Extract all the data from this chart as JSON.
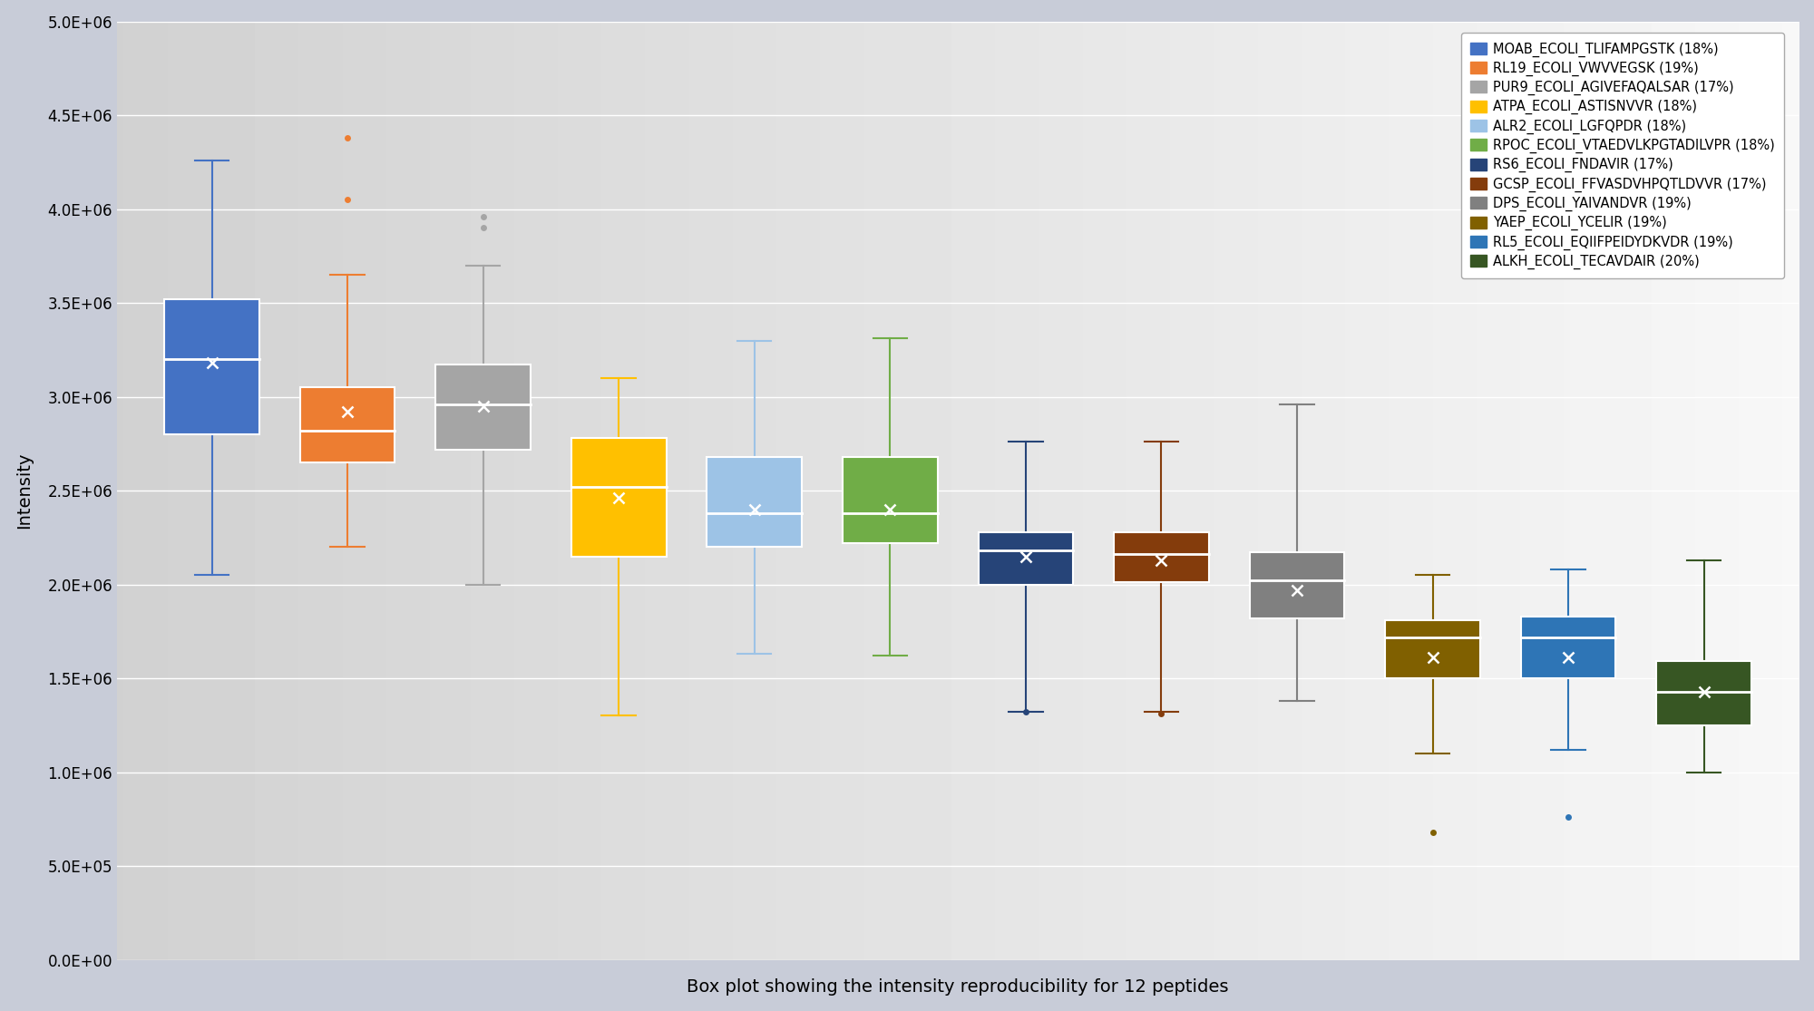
{
  "title": "Box plot showing the intensity reproducibility for 12 peptides",
  "ylabel": "Intensity",
  "ylim": [
    0,
    5000000
  ],
  "yticks": [
    0,
    500000,
    1000000,
    1500000,
    2000000,
    2500000,
    3000000,
    3500000,
    4000000,
    4500000,
    5000000
  ],
  "ytick_labels": [
    "0.0E+00",
    "5.0E+05",
    "1.0E+06",
    "1.5E+06",
    "2.0E+06",
    "2.5E+06",
    "3.0E+06",
    "3.5E+06",
    "4.0E+06",
    "4.5E+06",
    "5.0E+06"
  ],
  "peptides": [
    {
      "label": "MOAB_ECOLI_TLIFAMPGSTK (18%)",
      "color": "#4472c4",
      "whislo": 2050000,
      "q1": 2800000,
      "med": 3200000,
      "q3": 3520000,
      "whishi": 4260000,
      "mean": 3180000,
      "fliers": []
    },
    {
      "label": "RL19_ECOLI_VWVVEGSK (19%)",
      "color": "#ed7d31",
      "whislo": 2200000,
      "q1": 2650000,
      "med": 2820000,
      "q3": 3050000,
      "whishi": 3650000,
      "mean": 2920000,
      "fliers": [
        4050000,
        4380000
      ]
    },
    {
      "label": "PUR9_ECOLI_AGIVEFAQALSAR (17%)",
      "color": "#a5a5a5",
      "whislo": 2000000,
      "q1": 2720000,
      "med": 2960000,
      "q3": 3170000,
      "whishi": 3700000,
      "mean": 2950000,
      "fliers": [
        3900000,
        3960000
      ]
    },
    {
      "label": "ATPA_ECOLI_ASTISNVVR (18%)",
      "color": "#ffc000",
      "whislo": 1300000,
      "q1": 2150000,
      "med": 2520000,
      "q3": 2780000,
      "whishi": 3100000,
      "mean": 2460000,
      "fliers": []
    },
    {
      "label": "ALR2_ECOLI_LGFQPDR (18%)",
      "color": "#9dc3e6",
      "whislo": 1630000,
      "q1": 2200000,
      "med": 2380000,
      "q3": 2680000,
      "whishi": 3300000,
      "mean": 2400000,
      "fliers": []
    },
    {
      "label": "RPOC_ECOLI_VTAEDVLKPGTADILVPR (18%)",
      "color": "#70ad47",
      "whislo": 1620000,
      "q1": 2220000,
      "med": 2380000,
      "q3": 2680000,
      "whishi": 3310000,
      "mean": 2400000,
      "fliers": []
    },
    {
      "label": "RS6_ECOLI_FNDAVIR (17%)",
      "color": "#264478",
      "whislo": 1320000,
      "q1": 2000000,
      "med": 2180000,
      "q3": 2280000,
      "whishi": 2760000,
      "mean": 2150000,
      "fliers": [
        1320000
      ]
    },
    {
      "label": "GCSP_ECOLI_FFVASDVHPQTLDVVR (17%)",
      "color": "#843c0c",
      "whislo": 1320000,
      "q1": 2010000,
      "med": 2160000,
      "q3": 2280000,
      "whishi": 2760000,
      "mean": 2130000,
      "fliers": [
        1310000
      ]
    },
    {
      "label": "DPS_ECOLI_YAIVANDVR (19%)",
      "color": "#808080",
      "whislo": 1380000,
      "q1": 1820000,
      "med": 2020000,
      "q3": 2170000,
      "whishi": 2960000,
      "mean": 1970000,
      "fliers": []
    },
    {
      "label": "YAEP_ECOLI_YCELIR (19%)",
      "color": "#806000",
      "whislo": 1100000,
      "q1": 1500000,
      "med": 1720000,
      "q3": 1810000,
      "whishi": 2050000,
      "mean": 1610000,
      "fliers": [
        680000
      ]
    },
    {
      "label": "RL5_ECOLI_EQIIFPEIDYDKVDR (19%)",
      "color": "#2e75b6",
      "whislo": 1120000,
      "q1": 1500000,
      "med": 1720000,
      "q3": 1830000,
      "whishi": 2080000,
      "mean": 1610000,
      "fliers": [
        760000
      ]
    },
    {
      "label": "ALKH_ECOLI_TECAVDAIR (20%)",
      "color": "#375623",
      "whislo": 1000000,
      "q1": 1250000,
      "med": 1430000,
      "q3": 1590000,
      "whishi": 2130000,
      "mean": 1430000,
      "fliers": []
    }
  ]
}
